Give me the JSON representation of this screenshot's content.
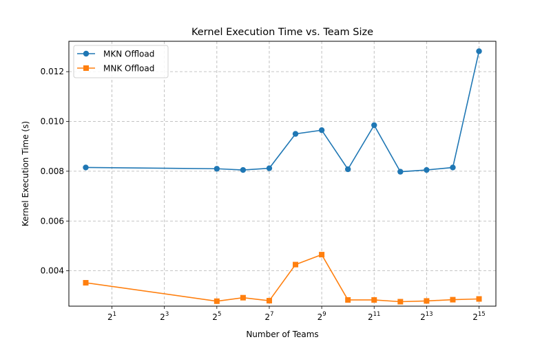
{
  "chart_data": {
    "type": "line",
    "title": "Kernel Execution Time vs. Team Size",
    "xlabel": "Number of Teams",
    "ylabel": "Kernel Execution Time (s)",
    "x_scale": "log2",
    "x": [
      1,
      32,
      64,
      128,
      256,
      512,
      1024,
      2048,
      4096,
      8192,
      16384,
      32768
    ],
    "xlim": [
      0.64,
      51200
    ],
    "ylim": [
      0.00258,
      0.01322
    ],
    "xticks": [
      {
        "value": 2,
        "base": "2",
        "exp": "1"
      },
      {
        "value": 8,
        "base": "2",
        "exp": "3"
      },
      {
        "value": 32,
        "base": "2",
        "exp": "5"
      },
      {
        "value": 128,
        "base": "2",
        "exp": "7"
      },
      {
        "value": 512,
        "base": "2",
        "exp": "9"
      },
      {
        "value": 2048,
        "base": "2",
        "exp": "11"
      },
      {
        "value": 8192,
        "base": "2",
        "exp": "13"
      },
      {
        "value": 32768,
        "base": "2",
        "exp": "15"
      }
    ],
    "yticks": [
      {
        "value": 0.004,
        "label": "0.004"
      },
      {
        "value": 0.006,
        "label": "0.006"
      },
      {
        "value": 0.008,
        "label": "0.008"
      },
      {
        "value": 0.01,
        "label": "0.010"
      },
      {
        "value": 0.012,
        "label": "0.012"
      }
    ],
    "grid": true,
    "grid_style": "dashed",
    "legend_position": "top-left",
    "series": [
      {
        "name": "MKN Offload",
        "color": "#1f77b4",
        "marker": "circle",
        "values": [
          0.00815,
          0.0081,
          0.00805,
          0.00812,
          0.0095,
          0.00965,
          0.00808,
          0.00985,
          0.00798,
          0.00805,
          0.00815,
          0.01282
        ]
      },
      {
        "name": "MNK Offload",
        "color": "#ff7f0e",
        "marker": "square",
        "values": [
          0.00352,
          0.00278,
          0.00292,
          0.0028,
          0.00425,
          0.00465,
          0.00283,
          0.00283,
          0.00276,
          0.00279,
          0.00284,
          0.00287
        ]
      }
    ]
  }
}
